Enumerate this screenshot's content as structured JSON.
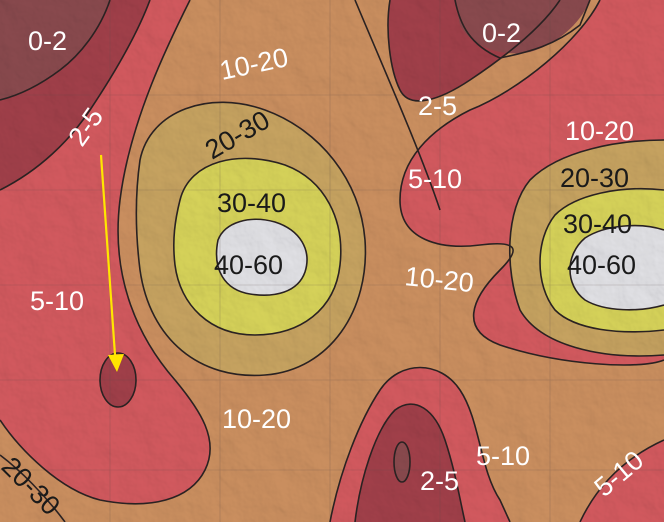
{
  "map": {
    "colors": {
      "zone_0_2": "#8a4a4e",
      "zone_2_5": "#a2404a",
      "zone_5_10": "#d45a5f",
      "zone_10_20": "#cc9060",
      "zone_20_30": "#c8a461",
      "zone_30_40": "#d8d45a",
      "zone_40_60": "#e2e2e6",
      "contour": "#2a2222",
      "arrow": "#ffe600"
    },
    "labels": [
      {
        "id": "label-0-2-topleft",
        "text": "0-2"
      },
      {
        "id": "label-0-2-topright",
        "text": "0-2"
      },
      {
        "id": "label-2-5-left",
        "text": "2-5"
      },
      {
        "id": "label-2-5-center",
        "text": "2-5"
      },
      {
        "id": "label-2-5-bottom",
        "text": "2-5"
      },
      {
        "id": "label-10-20-top",
        "text": "10-20"
      },
      {
        "id": "label-10-20-right",
        "text": "10-20"
      },
      {
        "id": "label-10-20-center",
        "text": "10-20"
      },
      {
        "id": "label-10-20-bottom",
        "text": "10-20"
      },
      {
        "id": "label-20-30-left",
        "text": "20-30"
      },
      {
        "id": "label-20-30-right",
        "text": "20-30"
      },
      {
        "id": "label-20-30-corner",
        "text": "20-30"
      },
      {
        "id": "label-30-40-left",
        "text": "30-40"
      },
      {
        "id": "label-30-40-right",
        "text": "30-40"
      },
      {
        "id": "label-40-60-left",
        "text": "40-60"
      },
      {
        "id": "label-40-60-right",
        "text": "40-60"
      },
      {
        "id": "label-5-10-center",
        "text": "5-10"
      },
      {
        "id": "label-5-10-left",
        "text": "5-10"
      },
      {
        "id": "label-5-10-bottom",
        "text": "5-10"
      },
      {
        "id": "label-5-10-corner",
        "text": "5-10"
      }
    ]
  }
}
